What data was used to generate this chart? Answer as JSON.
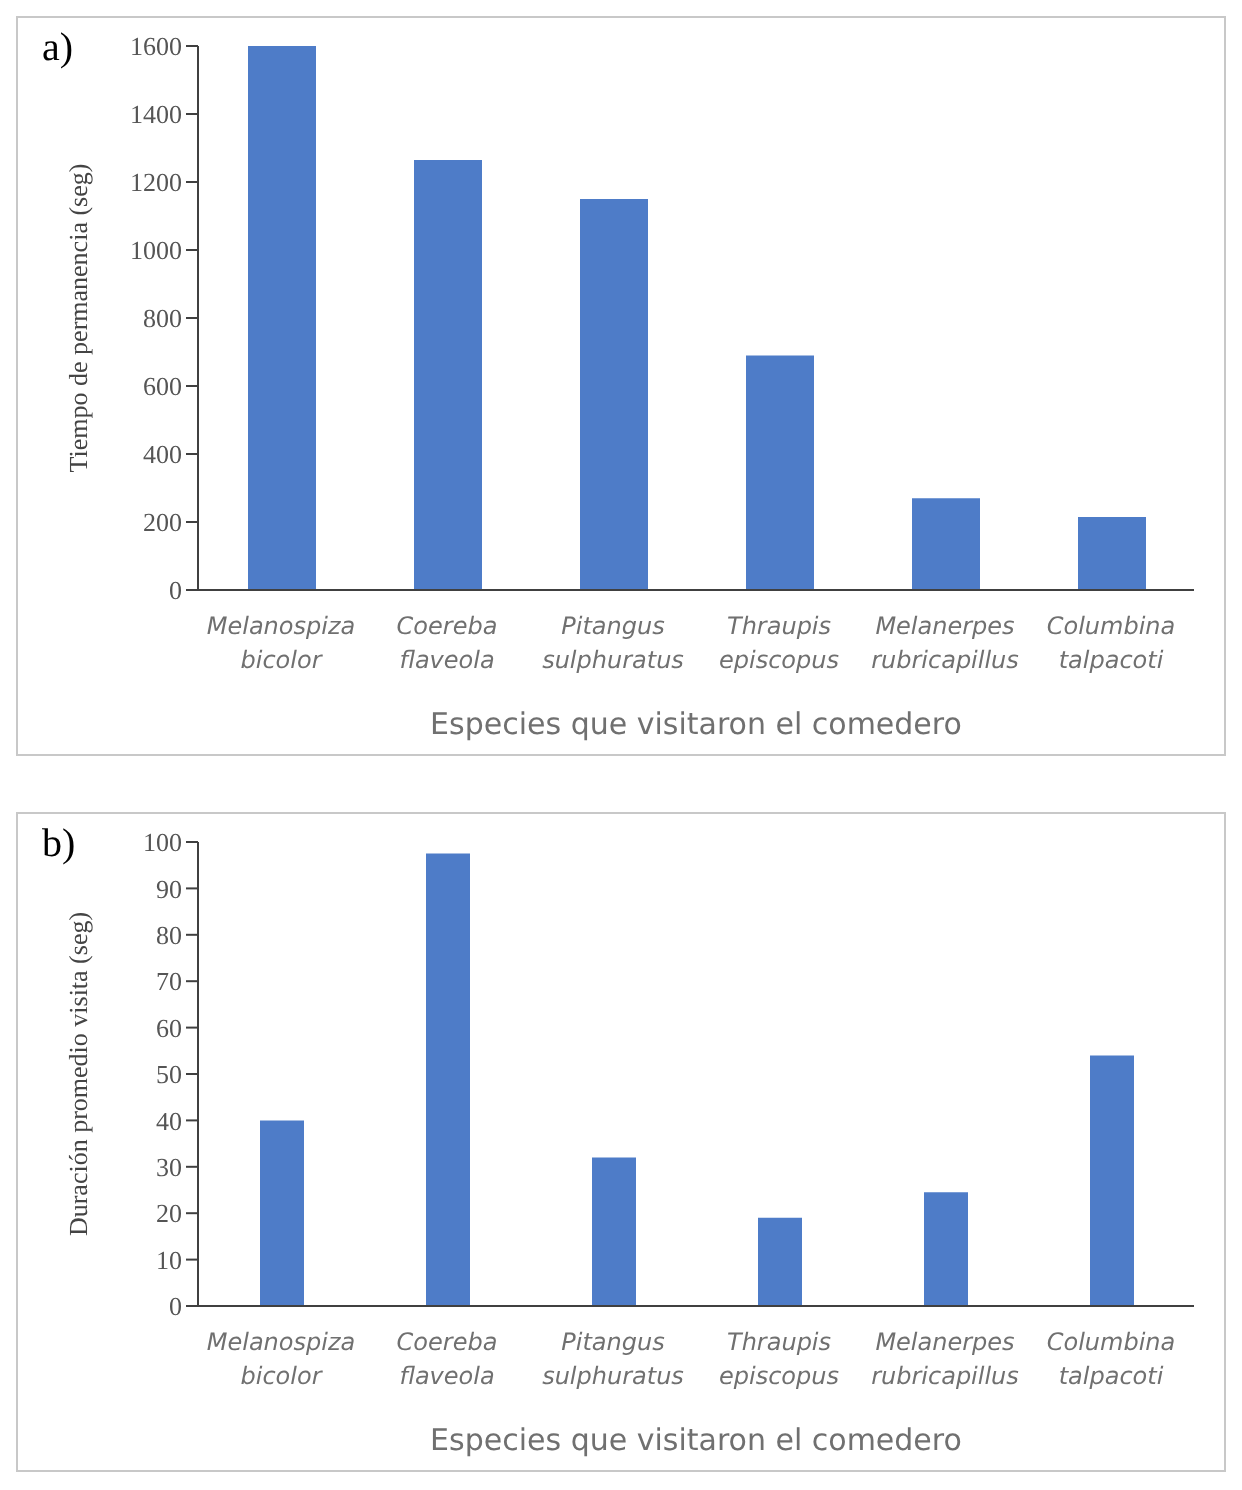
{
  "chart_data": [
    {
      "type": "bar",
      "title": "a)",
      "categories": [
        "Melanospiza bicolor",
        "Coereba flaveola",
        "Pitangus sulphuratus",
        "Thraupis episcopus",
        "Melanerpes rubricapillus",
        "Columbina talpacoti"
      ],
      "values": [
        1600,
        1265,
        1150,
        690,
        270,
        215
      ],
      "color": "#4e7cc8",
      "ylim": [
        0,
        1600
      ],
      "yticks": [
        0,
        200,
        400,
        600,
        800,
        1000,
        1200,
        1400,
        1600
      ],
      "xlabel": "Especies que visitaron el comedero",
      "ylabel": "Tiempo de permanencia (seg)",
      "grid": false,
      "legend": false
    },
    {
      "type": "bar",
      "title": "b)",
      "categories": [
        "Melanospiza bicolor",
        "Coereba flaveola",
        "Pitangus sulphuratus",
        "Thraupis episcopus",
        "Melanerpes rubricapillus",
        "Columbina talpacoti"
      ],
      "values": [
        40,
        97.5,
        32,
        19,
        24.5,
        54
      ],
      "color": "#4e7cc8",
      "ylim": [
        0,
        100
      ],
      "yticks": [
        0,
        10,
        20,
        30,
        40,
        50,
        60,
        70,
        80,
        90,
        100
      ],
      "xlabel": "Especies que visitaron el comedero",
      "ylabel": "Duración promedio visita (seg)",
      "grid": false,
      "legend": false
    }
  ]
}
